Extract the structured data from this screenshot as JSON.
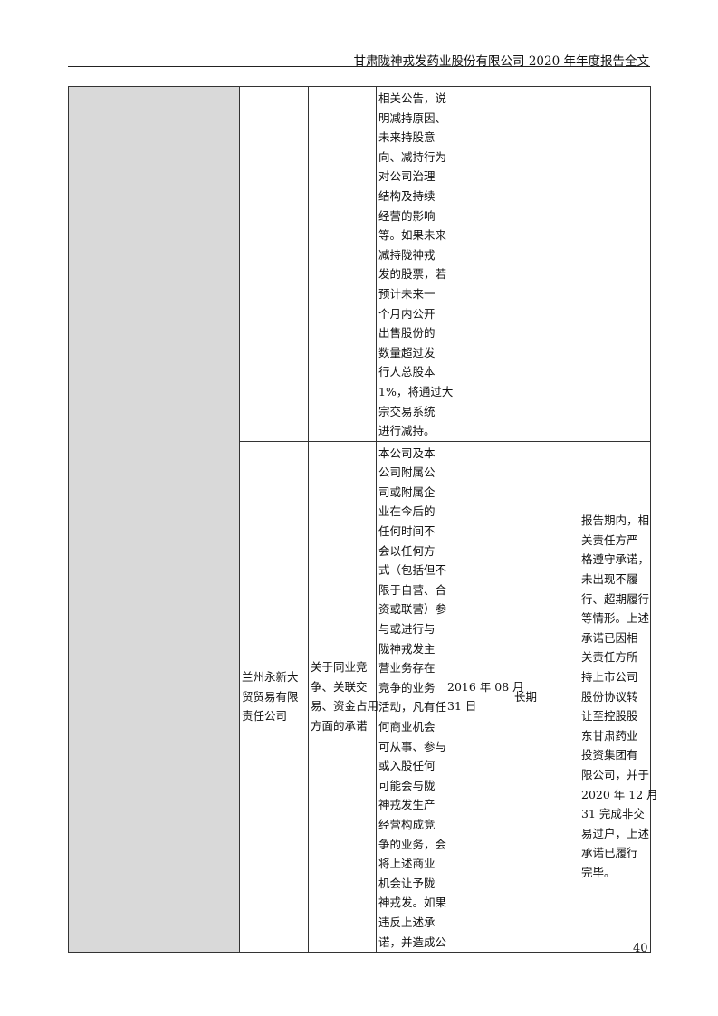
{
  "header": {
    "title": "甘肃陇神戎发药业股份有限公司 2020 年年度报告全文"
  },
  "table": {
    "rows": [
      {
        "party": [],
        "type": [],
        "content": [
          "相关公告，说",
          "明减持原因、",
          "未来持股意",
          "向、减持行为",
          "对公司治理",
          "结构及持续",
          "经营的影响",
          "等。如果未来",
          "减持陇神戎",
          "发的股票，若",
          "预计未来一",
          "个月内公开",
          "出售股份的",
          "数量超过发",
          "行人总股本",
          "1%，将通过大",
          "宗交易系统",
          "进行减持。"
        ],
        "time": [],
        "period": [],
        "status": []
      },
      {
        "party": [
          "兰州永新大",
          "贸贸易有限",
          "责任公司"
        ],
        "type": [
          "关于同业竞",
          "争、关联交",
          "易、资金占用",
          "方面的承诺"
        ],
        "content": [
          "本公司及本",
          "公司附属公",
          "司或附属企",
          "业在今后的",
          "任何时间不",
          "会以任何方",
          "式（包括但不",
          "限于自营、合",
          "资或联营）参",
          "与或进行与",
          "陇神戎发主",
          "营业务存在",
          "竞争的业务",
          "活动，凡有任",
          "何商业机会",
          "可从事、参与",
          "或入股任何",
          "可能会与陇",
          "神戎发生产",
          "经营构成竞",
          "争的业务，会",
          "将上述商业",
          "机会让予陇",
          "神戎发。如果",
          "违反上述承",
          "诺，并造成公"
        ],
        "time": [
          "2016 年 08 月",
          "31 日"
        ],
        "period": [
          "长期"
        ],
        "status": [
          "报告期内，相",
          "关责任方严",
          "格遵守承诺，",
          "未出现不履",
          "行、超期履行",
          "等情形。上述",
          "承诺已因相",
          "关责任方所",
          "持上市公司",
          "股份协议转",
          "让至控股股",
          "东甘肃药业",
          "投资集团有",
          "限公司，并于",
          "2020 年 12 月",
          "31 完成非交",
          "易过户，上述",
          "承诺已履行",
          "完毕。"
        ]
      }
    ]
  },
  "footer": {
    "page_number": "40"
  }
}
